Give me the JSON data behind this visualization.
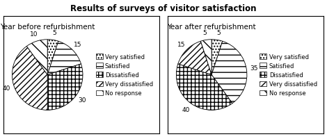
{
  "title": "Results of surveys of visitor satisfaction",
  "before_title": "Year before refurbishment",
  "after_title": "Year after refurbishment",
  "categories": [
    "Very satisfied",
    "Satisfied",
    "Dissatisfied",
    "Very dissatisfied",
    "No response"
  ],
  "before_values": [
    5,
    15,
    30,
    40,
    10
  ],
  "after_values": [
    5,
    35,
    40,
    15,
    5
  ],
  "hatch_patterns": [
    ".",
    "-",
    "++",
    "//",
    "\\\\"
  ],
  "face_colors": [
    "white",
    "white",
    "white",
    "white",
    "white"
  ],
  "title_fontsize": 7.5,
  "label_fontsize": 6.5,
  "legend_fontsize": 6.0,
  "suptitle_fontsize": 8.5
}
